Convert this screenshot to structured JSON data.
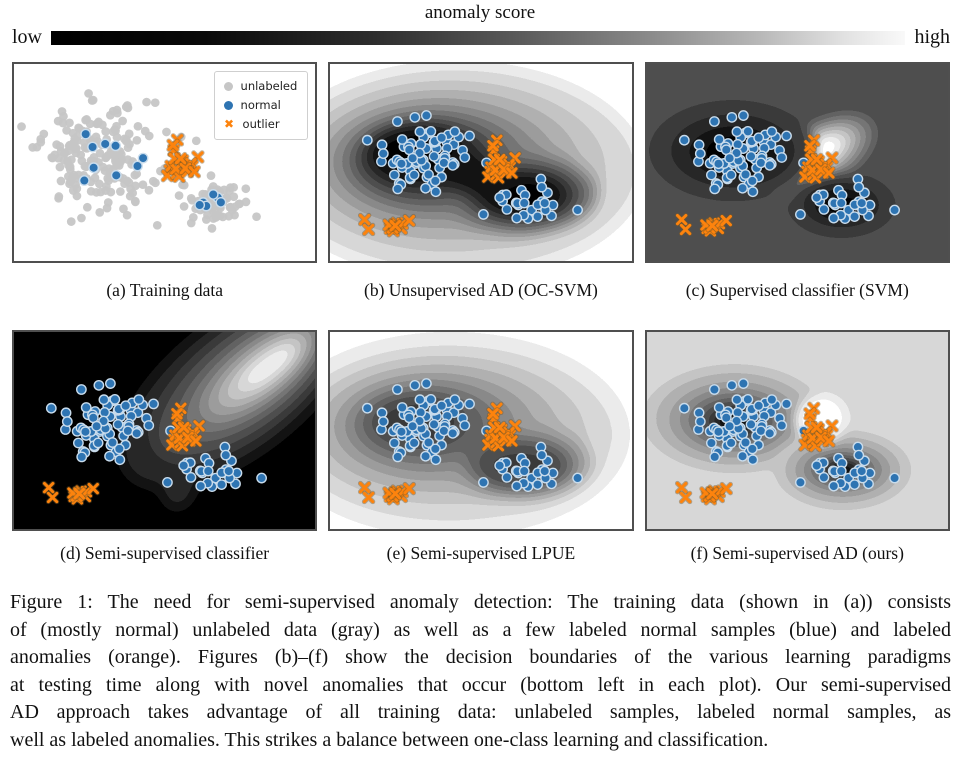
{
  "colorbar": {
    "title": "anomaly score",
    "left_label": "low",
    "right_label": "high",
    "low_color": "#000000",
    "high_color": "#ffffff"
  },
  "legend": {
    "items": [
      {
        "label": "unlabeled",
        "marker": "circle",
        "color_key": "gray"
      },
      {
        "label": "normal",
        "marker": "circle",
        "color_key": "blue"
      },
      {
        "label": "outlier",
        "marker": "x",
        "color_key": "orange"
      }
    ]
  },
  "colors": {
    "gray": "#c6c6c6",
    "blue": "#2e74b2",
    "blue_edge": "#c9dcec",
    "orange": "#fd830d",
    "orange_edge": "#7d5a28",
    "panel_border": "#4f4f4f"
  },
  "chart_data": {
    "type": "scatter",
    "note": "normalized panel coordinates, x right / y down; n-clusters are gaussian",
    "datasets": {
      "train": [
        {
          "label": "unlabeled",
          "marker": "circle",
          "color": "gray",
          "n": 190,
          "cx": 0.27,
          "cy": 0.48,
          "sx": 0.088,
          "sy": 0.135,
          "seed": 11
        },
        {
          "label": "unlabeled",
          "marker": "circle",
          "color": "gray",
          "n": 55,
          "cx": 0.66,
          "cy": 0.7,
          "sx": 0.046,
          "sy": 0.058,
          "seed": 12
        },
        {
          "label": "unlabeled",
          "marker": "circle",
          "color": "gray",
          "pts": [
            [
              0.555,
              0.37
            ],
            [
              0.605,
              0.39
            ],
            [
              0.5,
              0.53
            ],
            [
              0.77,
              0.7
            ],
            [
              0.805,
              0.775
            ],
            [
              0.565,
              0.615
            ],
            [
              0.19,
              0.8
            ]
          ]
        },
        {
          "label": "normal",
          "marker": "circle",
          "color": "blue",
          "n": 10,
          "cx": 0.3,
          "cy": 0.47,
          "sx": 0.05,
          "sy": 0.07,
          "seed": 13
        },
        {
          "label": "normal",
          "marker": "circle",
          "color": "blue",
          "n": 6,
          "cx": 0.655,
          "cy": 0.675,
          "sx": 0.024,
          "sy": 0.05,
          "seed": 14
        },
        {
          "label": "outlier",
          "marker": "x",
          "color": "orange",
          "n": 20,
          "cx": 0.555,
          "cy": 0.5,
          "sx": 0.027,
          "sy": 0.042,
          "seed": 15
        }
      ],
      "test": [
        {
          "label": "normal",
          "marker": "circle",
          "color": "blue",
          "n": 75,
          "cx": 0.31,
          "cy": 0.465,
          "sx": 0.082,
          "sy": 0.092,
          "seed": 21
        },
        {
          "label": "normal",
          "marker": "circle",
          "color": "blue",
          "n": 28,
          "cx": 0.665,
          "cy": 0.695,
          "sx": 0.05,
          "sy": 0.048,
          "seed": 22
        },
        {
          "label": "outlier",
          "marker": "x",
          "color": "orange",
          "n": 20,
          "cx": 0.565,
          "cy": 0.505,
          "sx": 0.024,
          "sy": 0.043,
          "seed": 15
        },
        {
          "label": "novel anomaly",
          "marker": "x",
          "color": "orange",
          "n": 9,
          "cx": 0.205,
          "cy": 0.815,
          "sx": 0.016,
          "sy": 0.022,
          "seed": 23
        },
        {
          "label": "novel anomaly",
          "marker": "x",
          "color": "orange",
          "pts": [
            [
              0.115,
              0.79
            ],
            [
              0.128,
              0.84
            ],
            [
              0.263,
              0.795
            ]
          ]
        }
      ]
    }
  },
  "panels": [
    {
      "id": "a",
      "caption": "(a) Training data",
      "dataset": "train",
      "background": {
        "base": "#ffffff",
        "shapes": []
      }
    },
    {
      "id": "b",
      "caption": "(b) Unsupervised AD (OC-SVM)",
      "dataset": "test",
      "background": {
        "base": "#f7f7f7",
        "blur": 8,
        "shapes": [
          [
            0.42,
            0.54,
            0.62,
            0.54,
            "#d6d6d6"
          ],
          [
            0.4,
            0.52,
            0.52,
            0.44,
            "#bfbfbf"
          ],
          [
            0.38,
            0.51,
            0.44,
            0.37,
            "#a8a8a8"
          ],
          [
            0.36,
            0.5,
            0.37,
            0.31,
            "#8f8f8f"
          ],
          [
            0.345,
            0.495,
            0.31,
            0.26,
            "#767676"
          ],
          [
            0.63,
            0.66,
            0.26,
            0.21,
            "#767676"
          ],
          [
            0.33,
            0.49,
            0.26,
            0.22,
            "#5a5a5a"
          ],
          [
            0.315,
            0.48,
            0.22,
            0.185,
            "#3f3f3f"
          ],
          [
            0.3,
            0.465,
            0.18,
            0.155,
            "#222222"
          ],
          [
            0.295,
            0.455,
            0.145,
            0.125,
            "#0a0a0a"
          ],
          [
            0.635,
            0.66,
            0.2,
            0.155,
            "#4a4a4a"
          ],
          [
            0.64,
            0.665,
            0.155,
            0.12,
            "#262626"
          ],
          [
            0.64,
            0.665,
            0.12,
            0.09,
            "#0a0a0a"
          ],
          [
            0.47,
            0.56,
            0.16,
            0.09,
            "#151515",
            20
          ]
        ]
      }
    },
    {
      "id": "c",
      "caption": "(c) Supervised classifier (SVM)",
      "dataset": "test",
      "background": {
        "base": "#4d4d4d",
        "blur": 5.5,
        "shapes": [
          [
            0.575,
            0.46,
            0.21,
            0.17,
            "#6f6f6f",
            -30
          ],
          [
            0.575,
            0.455,
            0.17,
            0.135,
            "#8f8f8f",
            -30
          ],
          [
            0.575,
            0.45,
            0.135,
            0.105,
            "#b4b4b4",
            -30
          ],
          [
            0.576,
            0.447,
            0.1,
            0.077,
            "#d9d9d9",
            -30
          ],
          [
            0.578,
            0.443,
            0.063,
            0.047,
            "#fdfdfd",
            -30
          ],
          [
            0.285,
            0.44,
            0.275,
            0.25,
            "#424242"
          ],
          [
            0.285,
            0.44,
            0.215,
            0.195,
            "#313131"
          ],
          [
            0.287,
            0.445,
            0.158,
            0.14,
            "#1f1f1f"
          ],
          [
            0.29,
            0.45,
            0.098,
            0.085,
            "#070707"
          ],
          [
            0.645,
            0.715,
            0.178,
            0.16,
            "#424242"
          ],
          [
            0.645,
            0.715,
            0.13,
            0.115,
            "#2d2d2d"
          ],
          [
            0.647,
            0.715,
            0.084,
            0.07,
            "#0e0e0e"
          ]
        ]
      }
    },
    {
      "id": "d",
      "caption": "(d) Semi-supervised classifier",
      "dataset": "test",
      "background": {
        "base": "#0a0a0a",
        "blur": 8,
        "shapes": [
          [
            0.555,
            0.62,
            0.065,
            0.27,
            "#3a3a3a",
            6
          ],
          [
            0.56,
            0.57,
            0.042,
            0.21,
            "#636363",
            6
          ],
          [
            0.74,
            0.28,
            0.46,
            0.33,
            "#2e2e2e",
            -38
          ],
          [
            0.77,
            0.25,
            0.37,
            0.25,
            "#525252",
            -38
          ],
          [
            0.795,
            0.225,
            0.29,
            0.185,
            "#787878",
            -38
          ],
          [
            0.815,
            0.205,
            0.225,
            0.13,
            "#a0a0a0",
            -38
          ],
          [
            0.83,
            0.19,
            0.165,
            0.085,
            "#cacaca",
            -38
          ],
          [
            0.845,
            0.175,
            0.105,
            0.05,
            "#f2f2f2",
            -38
          ]
        ]
      }
    },
    {
      "id": "e",
      "caption": "(e) Semi-supervised LPUE",
      "dataset": "test",
      "background": {
        "base": "#f0f0f0",
        "blur": 8,
        "shapes": [
          [
            0.4,
            0.52,
            0.57,
            0.48,
            "#d8d8d8"
          ],
          [
            0.38,
            0.5,
            0.48,
            0.39,
            "#c2c2c2"
          ],
          [
            0.36,
            0.49,
            0.4,
            0.325,
            "#adadad"
          ],
          [
            0.345,
            0.48,
            0.33,
            0.27,
            "#989898"
          ],
          [
            0.625,
            0.66,
            0.245,
            0.195,
            "#989898"
          ],
          [
            0.33,
            0.475,
            0.275,
            0.225,
            "#838383"
          ],
          [
            0.47,
            0.56,
            0.155,
            0.09,
            "#6d6d6d",
            20
          ],
          [
            0.315,
            0.47,
            0.225,
            0.185,
            "#6d6d6d"
          ],
          [
            0.3,
            0.46,
            0.18,
            0.148,
            "#565656"
          ],
          [
            0.295,
            0.455,
            0.132,
            0.108,
            "#3f3f3f"
          ],
          [
            0.63,
            0.672,
            0.178,
            0.138,
            "#5e5e5e"
          ],
          [
            0.635,
            0.68,
            0.125,
            0.096,
            "#424242"
          ]
        ]
      }
    },
    {
      "id": "f",
      "caption": "(f) Semi-supervised AD (ours)",
      "dataset": "test",
      "background": {
        "base": "#d4d4d4",
        "blur": 5,
        "shapes": [
          [
            0.29,
            0.44,
            0.315,
            0.285,
            "#c3c3c3"
          ],
          [
            0.29,
            0.44,
            0.265,
            0.237,
            "#aeaeae"
          ],
          [
            0.29,
            0.445,
            0.216,
            0.19,
            "#979797"
          ],
          [
            0.29,
            0.445,
            0.17,
            0.15,
            "#7d7d7d"
          ],
          [
            0.29,
            0.45,
            0.13,
            0.115,
            "#5f5f5f"
          ],
          [
            0.29,
            0.45,
            0.093,
            0.082,
            "#3b3b3b"
          ],
          [
            0.29,
            0.455,
            0.058,
            0.049,
            "#111111"
          ],
          [
            0.65,
            0.7,
            0.235,
            0.21,
            "#c3c3c3"
          ],
          [
            0.65,
            0.7,
            0.196,
            0.17,
            "#aeaeae"
          ],
          [
            0.65,
            0.7,
            0.158,
            0.135,
            "#979797"
          ],
          [
            0.65,
            0.7,
            0.122,
            0.1,
            "#7d7d7d"
          ],
          [
            0.65,
            0.7,
            0.088,
            0.07,
            "#585858"
          ],
          [
            0.65,
            0.7,
            0.054,
            0.042,
            "#161616"
          ],
          [
            0.578,
            0.445,
            0.09,
            0.128,
            "#ebebeb",
            -15
          ],
          [
            0.58,
            0.435,
            0.057,
            0.083,
            "#fefefe",
            -15
          ]
        ]
      }
    }
  ],
  "figure_caption": {
    "lines": [
      "Figure 1: The need for semi-supervised anomaly detection: The training data (shown in (a)) consists",
      "of (mostly normal) unlabeled data (gray) as well as a few labeled normal samples (blue) and labeled",
      "anomalies (orange). Figures (b)–(f) show the decision boundaries of the various learning paradigms",
      "at testing time along with novel anomalies that occur (bottom left in each plot). Our semi-supervised",
      "AD approach takes advantage of all training data: unlabeled samples, labeled normal samples, as",
      "well as labeled anomalies. This strikes a balance between one-class learning and classification."
    ]
  }
}
